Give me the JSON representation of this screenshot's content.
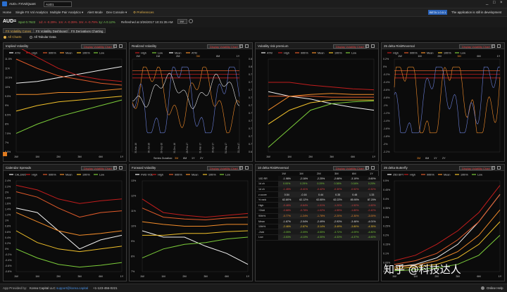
{
  "app": {
    "title": "AUD= FXVolQuant",
    "search_value": "AUD1",
    "window_buttons": [
      "_",
      "□",
      "×"
    ]
  },
  "menu": {
    "items": [
      "Home",
      "Single FX Vol Analytics",
      "Multiple Pair Analytics ▾",
      "Alert Mode",
      "Dev Console ▾",
      "⚙ Preferences"
    ],
    "beta_badge": "BETA 1.0.0.1",
    "beta_message": "The application is still in development"
  },
  "quote": {
    "ric": "AUD=",
    "spot": "Spot 0.7622",
    "one_d": "1d: A -0.29%",
    "one_m": "1m: A -0.39%",
    "three_m": "3m: A -0.79%",
    "one_y": "1y: A 0.12%",
    "refreshed": "Refreshed at 3/26/2017 10:31:35 AM",
    "dropdown": "1W"
  },
  "tabs": [
    "FX Volatility Cones",
    "FX Volatility Dashboard",
    "FX Derivatives Charting"
  ],
  "subtabs": [
    "All Charts",
    "All Tabular Data"
  ],
  "panel_button": "Display Volatility Chart",
  "panels": [
    {
      "title": "Implied Volatility",
      "legend": [
        "ATM",
        "High",
        "90th%",
        "Mean",
        "10th%",
        "Low"
      ],
      "yticks": [
        "11.5%",
        "11%",
        "10.5%",
        "10%",
        "9.5%",
        "9%",
        "8.5%",
        "8%",
        "7.5%",
        "7%",
        "6.5%"
      ],
      "xticks": [
        "1W",
        "1M",
        "2M",
        "3M",
        "6M",
        "1Y"
      ],
      "chart_data": {
        "type": "line",
        "x": [
          "1W",
          "1M",
          "2M",
          "3M",
          "6M",
          "1Y"
        ],
        "series": [
          {
            "name": "ATM",
            "values": [
              10.2,
              10.3,
              10.5,
              10.7,
              10.9,
              11.1
            ]
          },
          {
            "name": "High",
            "values": [
              12.2,
              11.6,
              11.0,
              10.6,
              10.4,
              10.3
            ]
          },
          {
            "name": "90th%",
            "values": [
              11.5,
              11.0,
              10.6,
              10.4,
              10.2,
              10.1
            ]
          },
          {
            "name": "Mean",
            "values": [
              9.6,
              9.6,
              9.7,
              9.7,
              9.8,
              9.9
            ]
          },
          {
            "name": "10th%",
            "values": [
              8.7,
              9.0,
              9.2,
              9.3,
              9.4,
              9.5
            ]
          },
          {
            "name": "Low",
            "values": [
              7.5,
              8.0,
              8.4,
              8.7,
              9.0,
              9.3
            ]
          }
        ]
      }
    },
    {
      "title": "Realized Volatility",
      "legend": [
        "High",
        "Low",
        "Mean",
        "ATM"
      ],
      "xticks": [
        "1W",
        "1M",
        "2M",
        "3M",
        "6M",
        "1Y"
      ],
      "dates": [
        "30-Mar-16",
        "30-Jun-16",
        "30-Sep-16",
        "30-Dec-16",
        "28-Feb-17",
        "31-Mar-17",
        "30-Apr-17",
        "31-May-17",
        "22-Jun-17"
      ],
      "yticks": [
        "0.810",
        "0.800",
        "0.790",
        "0.780",
        "0.770",
        "0.760",
        "0.750",
        "0.740",
        "0.730",
        "0.720",
        "0.710",
        "0.700",
        "0.690"
      ],
      "series_duration_label": "Series Duration:",
      "durations": [
        "3M",
        "6M",
        "1Y",
        "2Y"
      ]
    },
    {
      "title": "Volatility risk premium",
      "legend": [
        "ATM",
        "High",
        "90th%",
        "Mean",
        "10th%",
        "Low"
      ],
      "xticks": [
        "1W",
        "1M",
        "2M",
        "3M",
        "6M",
        "1Y"
      ]
    },
    {
      "title": "25 delta RiskReversal",
      "legend": [
        "High",
        "90th%",
        "Mean",
        "10th%",
        "Low"
      ],
      "xticks": [
        "1W",
        "1M",
        "2M",
        "3M",
        "6M",
        "1Y"
      ],
      "yticks": [
        "0.2%",
        "0%",
        "-0.2%",
        "-0.4%",
        "-0.6%",
        "-0.8%",
        "-1%",
        "-1.2%",
        "-1.4%",
        "-1.6%",
        "-1.8%",
        "-2%",
        "-2.2%"
      ],
      "durations": [
        "3M",
        "6M",
        "1Y",
        "2Y"
      ]
    },
    {
      "title": "Calendar Spreads",
      "legend": [
        "CAL1M/2",
        "High",
        "90th%",
        "Mean",
        "10th%",
        "Low"
      ],
      "yticks": [
        "2.4%",
        "2.2%",
        "2%",
        "1.8%",
        "1.6%",
        "1.4%",
        "1.2%",
        "1%",
        "0.8%",
        "0.6%",
        "0.4%",
        "0.2%",
        "0%",
        "-0.2%",
        "-0.4%",
        "-0.6%",
        "-0.8%"
      ],
      "xticks": [
        "1W",
        "1M",
        "2M",
        "3M",
        "6M",
        "1Y"
      ]
    },
    {
      "title": "Forward Volatility",
      "legend": [
        "FWD VOL",
        "High",
        "90th%",
        "Mean",
        "10th%",
        "Low"
      ],
      "yticks": [
        "13%",
        "12%",
        "11%",
        "10%",
        "9%",
        "8%",
        "7%"
      ],
      "xticks": [
        "1W",
        "1M",
        "2M",
        "3M",
        "6M",
        "1Y"
      ]
    },
    {
      "title": "10 delta RiskReversal",
      "headers": [
        "",
        "1W",
        "1M",
        "2M",
        "3M",
        "6M",
        "1Y"
      ],
      "rows": [
        [
          "10D RR",
          "-1.98%",
          "-2.16%",
          "-2.25%",
          "-2.68%",
          "-3.19%",
          "-3.60%"
        ],
        [
          "1d ch",
          "0.00%",
          "0.29%",
          "0.29%",
          "0.36%",
          "0.04%",
          "0.20%"
        ],
        [
          "1d ch",
          "-1.45%",
          "-0.41%",
          "-0.42%",
          "-0.30%",
          "-0.52%",
          "-0.32%"
        ],
        [
          "z-score",
          "0.54",
          "-0.16",
          "0.44",
          "0.35",
          "0.48",
          "1.33"
        ],
        [
          "% rank",
          "62.80%",
          "62.12%",
          "62.85%",
          "62.22%",
          "85.90%",
          "87.20%"
        ],
        [
          "High",
          "-0.48%",
          "-0.64%",
          "-1.01%",
          "-1.20%",
          "-1.52%",
          "-1.60%"
        ],
        [
          "+2std",
          "-0.68%",
          "-0.78%",
          "-1.02%",
          "-1.55%",
          "-1.89%",
          "-2.42%"
        ],
        [
          "90th%",
          "-0.77%",
          "-1.24%",
          "-1.78%",
          "-2.20%",
          "-2.30%",
          "-3.00%"
        ],
        [
          "Mean",
          "-1.67%",
          "-2.04%",
          "-2.49%",
          "-2.93%",
          "-3.46%",
          "-4.01%"
        ],
        [
          "10th%",
          "-2.46%",
          "-2.87%",
          "-3.14%",
          "-3.49%",
          "-3.80%",
          "-4.35%"
        ],
        [
          "-2std",
          "-3.05%",
          "-3.09%",
          "-3.55%",
          "-3.72%",
          "-4.09%",
          "-4.80%"
        ],
        [
          "Low",
          "-3.53%",
          "-4.10%",
          "-4.30%",
          "-4.33%",
          "-4.37%",
          "-4.60%"
        ]
      ]
    },
    {
      "title": "25 delta Butterfly",
      "legend": [
        "25D BFY",
        "High",
        "90th%",
        "Mean",
        "10th%",
        "Low"
      ],
      "yticks": [
        "0.5%",
        "0.45%",
        "0.4%",
        "0.35%",
        "0.3%",
        "0.25%",
        "0.2%",
        "0.15%",
        "0.1%",
        "0.05%",
        "0%"
      ],
      "xticks": [
        "1W",
        "1M",
        "2M",
        "3M",
        "6M",
        "1Y"
      ]
    }
  ],
  "footer": {
    "powered": "App Provided by:",
    "company": "Korea Capital LLC",
    "email": "support@korea.capital",
    "phone": "+1-123-456-0221",
    "help": "Online Help"
  },
  "watermark": "知乎 @科技达人"
}
